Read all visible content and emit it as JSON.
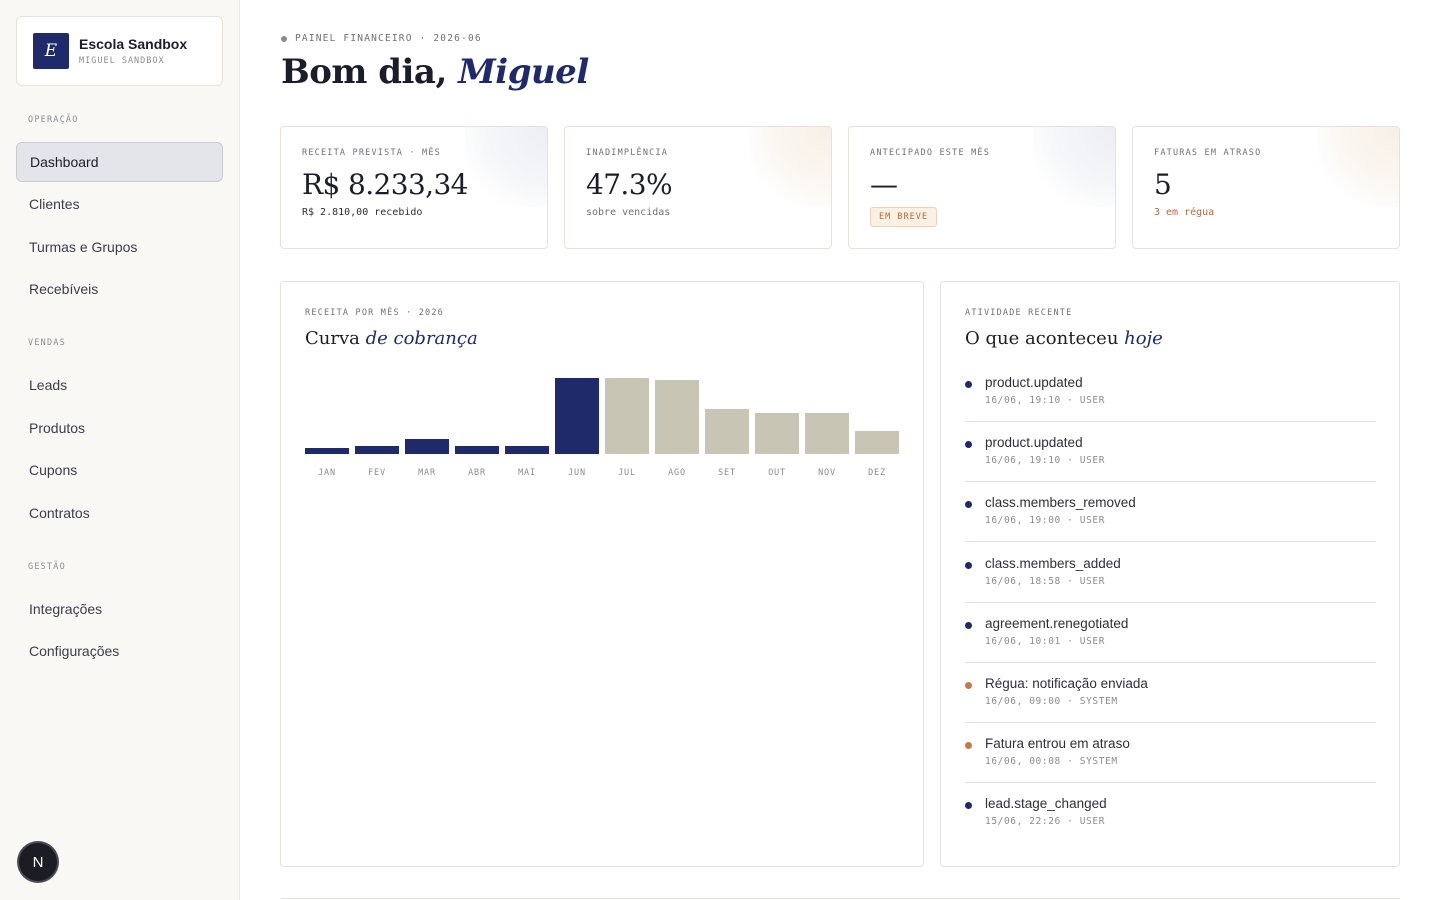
{
  "org": {
    "initial": "E",
    "name": "Escola Sandbox",
    "user": "MIGUEL SANDBOX"
  },
  "sidebar": {
    "sections": [
      {
        "label": "OPERAÇÃO",
        "items": [
          "Dashboard",
          "Clientes",
          "Turmas e Grupos",
          "Recebíveis"
        ]
      },
      {
        "label": "VENDAS",
        "items": [
          "Leads",
          "Produtos",
          "Cupons",
          "Contratos"
        ]
      },
      {
        "label": "GESTÃO",
        "items": [
          "Integrações",
          "Configurações"
        ]
      }
    ],
    "active": "Dashboard"
  },
  "badge": "N",
  "header": {
    "eyebrow": "PAINEL FINANCEIRO · 2026-06",
    "greeting_prefix": "Bom dia,",
    "greeting_name": "Miguel"
  },
  "kpis": [
    {
      "label": "RECEITA PREVISTA · MÊS",
      "value": "R$ 8.233,34",
      "sub": "R$ 2.810,00 recebido"
    },
    {
      "label": "INADIMPLÊNCIA",
      "value": "47.3%",
      "sub": "sobre vencidas"
    },
    {
      "label": "ANTECIPADO ESTE MÊS",
      "value": "—",
      "pill": "EM BREVE"
    },
    {
      "label": "FATURAS EM ATRASO",
      "value": "5",
      "sub": "3 em régua"
    }
  ],
  "revenue_panel": {
    "label": "RECEITA POR MÊS · 2026",
    "title_prefix": "Curva",
    "title_em": "de cobrança"
  },
  "chart_data": {
    "type": "bar",
    "categories": [
      "JAN",
      "FEV",
      "MAR",
      "ABR",
      "MAI",
      "JUN",
      "JUL",
      "AGO",
      "SET",
      "OUT",
      "NOV",
      "DEZ"
    ],
    "values": [
      6,
      8,
      15,
      8,
      8,
      76,
      76,
      74,
      45,
      41,
      41,
      23
    ],
    "realized": [
      true,
      true,
      true,
      true,
      true,
      true,
      false,
      false,
      false,
      false,
      false,
      false
    ],
    "ylim": [
      0,
      76
    ],
    "colors": {
      "realized": "#1f2a6b",
      "forecast": "#c8c5b5"
    },
    "title": "",
    "xlabel": "",
    "ylabel": ""
  },
  "activity_panel": {
    "label": "ATIVIDADE RECENTE",
    "title_prefix": "O que aconteceu",
    "title_em": "hoje",
    "items": [
      {
        "title": "product.updated",
        "meta": "16/06, 19:10 · USER",
        "color": "#1f2a6b"
      },
      {
        "title": "product.updated",
        "meta": "16/06, 19:10 · USER",
        "color": "#1f2a6b"
      },
      {
        "title": "class.members_removed",
        "meta": "16/06, 19:00 · USER",
        "color": "#1f2a6b"
      },
      {
        "title": "class.members_added",
        "meta": "16/06, 18:58 · USER",
        "color": "#1f2a6b"
      },
      {
        "title": "agreement.renegotiated",
        "meta": "16/06, 10:01 · USER",
        "color": "#1f2a6b"
      },
      {
        "title": "Régua: notificação enviada",
        "meta": "16/06, 09:00 · SYSTEM",
        "color": "#c47a45"
      },
      {
        "title": "Fatura entrou em atraso",
        "meta": "16/06, 00:08 · SYSTEM",
        "color": "#c47a45"
      },
      {
        "title": "lead.stage_changed",
        "meta": "15/06, 22:26 · USER",
        "color": "#1f2a6b"
      }
    ]
  }
}
